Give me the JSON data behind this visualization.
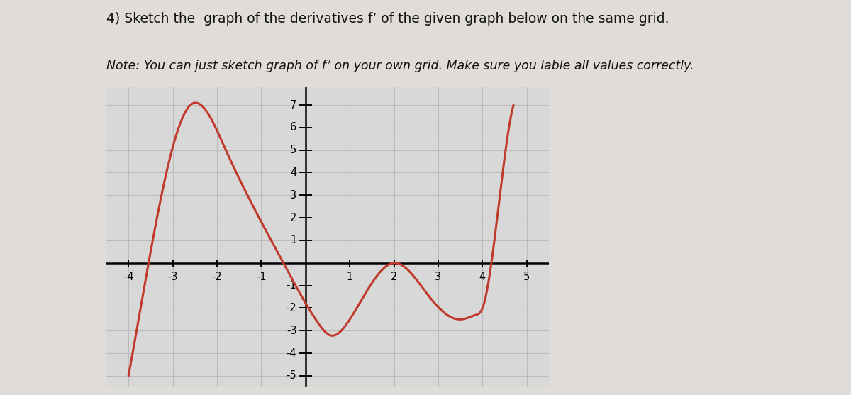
{
  "title_line1": "4) Sketch the  graph of the derivatives f’ of the given graph below on the same grid.",
  "title_line2": "Note: You can just sketch graph of f’ on your own grid. Make sure you lable all values correctly.",
  "xmin": -4.5,
  "xmax": 5.5,
  "ymin": -5.5,
  "ymax": 7.8,
  "xticks": [
    -4,
    -3,
    -2,
    -1,
    1,
    2,
    3,
    4,
    5
  ],
  "yticks": [
    -5,
    -4,
    -3,
    -2,
    -1,
    1,
    2,
    3,
    4,
    5,
    6,
    7
  ],
  "curve_color": "#c0392b",
  "curve_linewidth": 2.2,
  "grid_color": "#bbbbbb",
  "background_color": "#d8d8d8",
  "page_color": "#e0ddd8",
  "font_color": "#111111",
  "text_fontsize": 13.5,
  "note_fontsize": 12.5,
  "curve_x": [
    -4.0,
    -3.5,
    -2.6,
    -1.8,
    -0.5,
    0.3,
    0.55,
    1.0,
    2.0,
    2.8,
    3.5,
    3.85,
    4.0,
    4.3,
    4.7
  ],
  "curve_y": [
    -5.0,
    0.5,
    7.0,
    5.0,
    0.0,
    -2.7,
    -3.2,
    -2.5,
    0.0,
    -1.5,
    -2.5,
    -2.3,
    -2.0,
    1.5,
    7.0
  ]
}
